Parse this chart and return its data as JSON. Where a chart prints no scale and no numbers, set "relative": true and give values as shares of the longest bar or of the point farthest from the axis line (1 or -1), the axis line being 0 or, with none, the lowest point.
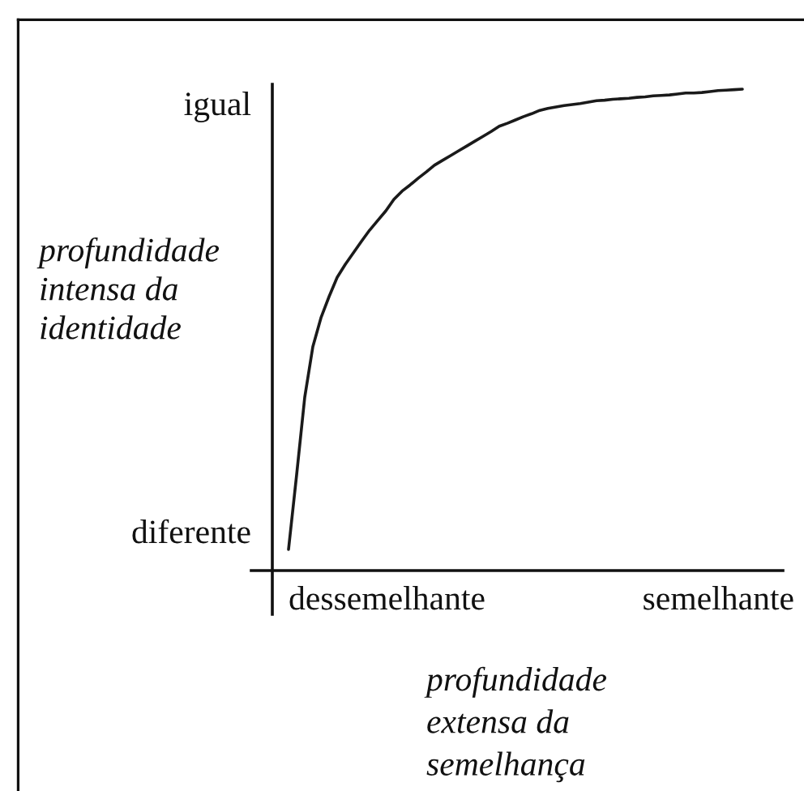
{
  "chart_data": {
    "type": "line",
    "relative": true,
    "xlabel": "profundidade\nextensa da\nsemelhança",
    "ylabel": "profundidade\nintensa da\nidentidade",
    "annotations": [
      "igual",
      "diferente",
      "dessemelhante",
      "semelhante"
    ],
    "categories": [
      null,
      null,
      null,
      null,
      null,
      null,
      null,
      null,
      null,
      null,
      null,
      null,
      null,
      null,
      null,
      null,
      null,
      null,
      null,
      null,
      null,
      null,
      null,
      null,
      null,
      null,
      null,
      null,
      null,
      null,
      null,
      null,
      null,
      null,
      null,
      null,
      null,
      null,
      null,
      null,
      null,
      null,
      null,
      null,
      null,
      null,
      null,
      null,
      null,
      null,
      null,
      null,
      null,
      null,
      null,
      null,
      null
    ],
    "series": [
      {
        "color": "#1a1a1a",
        "values": [
          0.044,
          0.199,
          0.36,
          0.465,
          0.525,
          0.569,
          0.609,
          0.636,
          0.66,
          0.684,
          0.707,
          0.727,
          0.747,
          0.771,
          0.788,
          0.801,
          0.815,
          0.828,
          0.842,
          0.852,
          0.862,
          0.872,
          0.882,
          0.892,
          0.902,
          0.912,
          0.923,
          0.929,
          0.936,
          0.943,
          0.949,
          0.956,
          0.96,
          0.963,
          0.966,
          0.968,
          0.97,
          0.973,
          0.976,
          0.977,
          0.979,
          0.98,
          0.981,
          0.983,
          0.984,
          0.986,
          0.987,
          0.988,
          0.99,
          0.992,
          0.992,
          0.993,
          0.995,
          0.997,
          0.998,
          0.999,
          1.0
        ]
      }
    ],
    "line_style": "solid"
  }
}
